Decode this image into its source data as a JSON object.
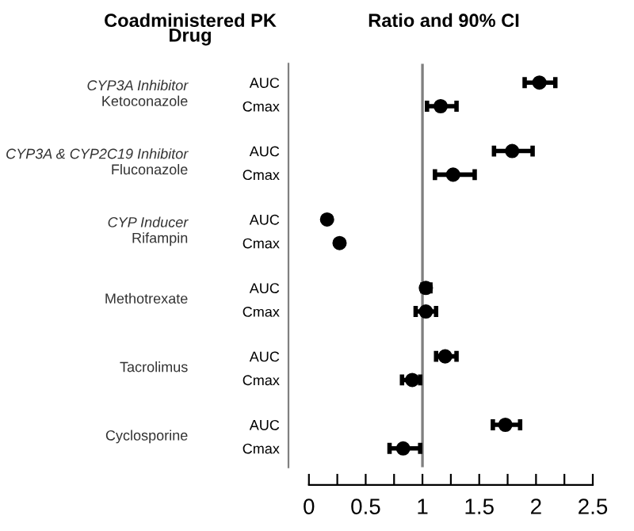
{
  "chart_data": {
    "type": "scatter",
    "orientation": "horizontal",
    "title": "Ratio and 90% CI",
    "categories": [
      "AUC",
      "Cmax",
      "AUC",
      "Cmax",
      "AUC",
      "Cmax",
      "AUC",
      "Cmax",
      "AUC",
      "Cmax",
      "AUC",
      "Cmax"
    ],
    "series": [
      {
        "color": "#000000",
        "values": [
          2.03,
          1.16,
          1.79,
          1.27,
          0.16,
          0.27,
          1.03,
          1.03,
          1.2,
          0.91,
          1.73,
          0.83
        ],
        "errors": [
          [
            1.9,
            2.17
          ],
          [
            1.04,
            1.3
          ],
          [
            1.63,
            1.97
          ],
          [
            1.11,
            1.46
          ],
          null,
          null,
          [
            1.0,
            1.07
          ],
          [
            0.94,
            1.12
          ],
          [
            1.12,
            1.3
          ],
          [
            0.82,
            0.98
          ],
          [
            1.62,
            1.86
          ],
          [
            0.71,
            0.98
          ]
        ]
      }
    ],
    "xlim": [
      -0.18,
      2.5
    ],
    "xticks": [
      0,
      {
        "value": 0.25,
        "label": null
      },
      0.5,
      {
        "value": 0.75,
        "label": null
      },
      1,
      {
        "value": 1.25,
        "label": null
      },
      1.5,
      {
        "value": 1.75,
        "label": null
      },
      2,
      {
        "value": 2.25,
        "label": null
      },
      2.5
    ],
    "ref_lines": [
      {
        "axis": "x",
        "value": 1,
        "color": "#808080"
      }
    ],
    "marker": "circle",
    "grid": false,
    "legend": false,
    "annotations": [
      "Coadministered PK\nDrug",
      "CYP3A Inhibitor\nKetoconazole",
      "CYP3A & CYP2C19 Inhibitor\nFluconazole",
      "CYP Inducer\nRifampin",
      "Methotrexate",
      "Tacrolimus",
      "Cyclosporine"
    ]
  }
}
